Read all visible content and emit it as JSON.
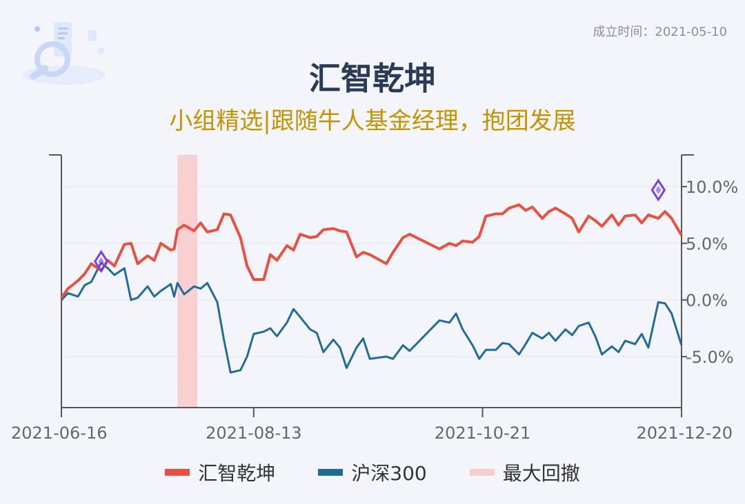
{
  "header": {
    "established": "成立时间：2021-05-10",
    "title": "汇智乾坤",
    "subtitle": "小组精选|跟随牛人基金经理，抱团发展"
  },
  "legend": [
    {
      "label": "汇智乾坤",
      "color": "#e8503f"
    },
    {
      "label": "沪深300",
      "color": "#1f6c99"
    },
    {
      "label": "最大回撤",
      "color": "#f9cccc"
    }
  ],
  "chart_data": {
    "type": "line",
    "x_ticks": [
      "2021-06-16",
      "2021-08-13",
      "2021-10-21",
      "2021-12-20"
    ],
    "y_ticks": [
      "10.0%",
      "5.0%",
      "0.0%",
      "-5.0%"
    ],
    "y_tick_values": [
      10,
      5,
      0,
      -5
    ],
    "ylim": [
      -9.5,
      12.8
    ],
    "axis_position": "right",
    "grid": true,
    "drawdown_range": [
      "2021-07-21",
      "2021-07-27"
    ],
    "series": [
      {
        "name": "汇智乾坤",
        "color": "#e8503f",
        "points": [
          [
            "2021-06-16",
            0.2
          ],
          [
            "2021-06-18",
            1.0
          ],
          [
            "2021-06-21",
            1.7
          ],
          [
            "2021-06-23",
            2.3
          ],
          [
            "2021-06-25",
            3.2
          ],
          [
            "2021-06-28",
            2.6
          ],
          [
            "2021-06-30",
            3.5
          ],
          [
            "2021-07-02",
            3.0
          ],
          [
            "2021-07-05",
            4.9
          ],
          [
            "2021-07-07",
            5.0
          ],
          [
            "2021-07-09",
            3.2
          ],
          [
            "2021-07-12",
            3.9
          ],
          [
            "2021-07-14",
            3.5
          ],
          [
            "2021-07-16",
            5.0
          ],
          [
            "2021-07-19",
            4.4
          ],
          [
            "2021-07-20",
            4.5
          ],
          [
            "2021-07-21",
            6.2
          ],
          [
            "2021-07-23",
            6.6
          ],
          [
            "2021-07-26",
            6.1
          ],
          [
            "2021-07-28",
            6.8
          ],
          [
            "2021-07-30",
            6.0
          ],
          [
            "2021-08-02",
            6.2
          ],
          [
            "2021-08-04",
            7.6
          ],
          [
            "2021-08-06",
            7.5
          ],
          [
            "2021-08-09",
            5.5
          ],
          [
            "2021-08-11",
            3.0
          ],
          [
            "2021-08-13",
            1.8
          ],
          [
            "2021-08-16",
            1.8
          ],
          [
            "2021-08-18",
            4.0
          ],
          [
            "2021-08-20",
            3.5
          ],
          [
            "2021-08-23",
            4.8
          ],
          [
            "2021-08-25",
            4.4
          ],
          [
            "2021-08-27",
            5.8
          ],
          [
            "2021-08-30",
            5.5
          ],
          [
            "2021-09-01",
            5.6
          ],
          [
            "2021-09-03",
            6.2
          ],
          [
            "2021-09-06",
            6.3
          ],
          [
            "2021-09-08",
            6.1
          ],
          [
            "2021-09-10",
            6.0
          ],
          [
            "2021-09-13",
            3.8
          ],
          [
            "2021-09-15",
            4.2
          ],
          [
            "2021-09-17",
            4.0
          ],
          [
            "2021-09-22",
            3.2
          ],
          [
            "2021-09-24",
            4.2
          ],
          [
            "2021-09-27",
            5.5
          ],
          [
            "2021-09-29",
            5.8
          ],
          [
            "2021-10-08",
            4.5
          ],
          [
            "2021-10-11",
            5.0
          ],
          [
            "2021-10-13",
            4.8
          ],
          [
            "2021-10-15",
            5.2
          ],
          [
            "2021-10-18",
            5.1
          ],
          [
            "2021-10-20",
            5.6
          ],
          [
            "2021-10-22",
            7.4
          ],
          [
            "2021-10-25",
            7.6
          ],
          [
            "2021-10-27",
            7.6
          ],
          [
            "2021-10-29",
            8.1
          ],
          [
            "2021-11-01",
            8.4
          ],
          [
            "2021-11-03",
            7.9
          ],
          [
            "2021-11-05",
            8.2
          ],
          [
            "2021-11-08",
            7.2
          ],
          [
            "2021-11-10",
            7.8
          ],
          [
            "2021-11-12",
            8.1
          ],
          [
            "2021-11-15",
            7.6
          ],
          [
            "2021-11-17",
            7.2
          ],
          [
            "2021-11-19",
            6.0
          ],
          [
            "2021-11-22",
            7.4
          ],
          [
            "2021-11-24",
            7.0
          ],
          [
            "2021-11-26",
            6.5
          ],
          [
            "2021-11-29",
            7.5
          ],
          [
            "2021-12-01",
            6.6
          ],
          [
            "2021-12-03",
            7.4
          ],
          [
            "2021-12-06",
            7.5
          ],
          [
            "2021-12-08",
            6.8
          ],
          [
            "2021-12-10",
            7.5
          ],
          [
            "2021-12-13",
            7.2
          ],
          [
            "2021-12-15",
            7.8
          ],
          [
            "2021-12-17",
            7.2
          ],
          [
            "2021-12-20",
            5.7
          ]
        ]
      },
      {
        "name": "沪深300",
        "color": "#1f6c99",
        "points": [
          [
            "2021-06-16",
            0.0
          ],
          [
            "2021-06-18",
            0.6
          ],
          [
            "2021-06-21",
            0.3
          ],
          [
            "2021-06-23",
            1.3
          ],
          [
            "2021-06-25",
            1.6
          ],
          [
            "2021-06-28",
            3.3
          ],
          [
            "2021-06-30",
            2.8
          ],
          [
            "2021-07-02",
            2.2
          ],
          [
            "2021-07-05",
            2.8
          ],
          [
            "2021-07-07",
            0.0
          ],
          [
            "2021-07-09",
            0.2
          ],
          [
            "2021-07-12",
            1.2
          ],
          [
            "2021-07-14",
            0.3
          ],
          [
            "2021-07-16",
            0.8
          ],
          [
            "2021-07-19",
            1.4
          ],
          [
            "2021-07-20",
            0.3
          ],
          [
            "2021-07-21",
            1.5
          ],
          [
            "2021-07-23",
            0.5
          ],
          [
            "2021-07-26",
            1.2
          ],
          [
            "2021-07-28",
            1.0
          ],
          [
            "2021-07-30",
            1.5
          ],
          [
            "2021-08-02",
            -0.2
          ],
          [
            "2021-08-04",
            -3.5
          ],
          [
            "2021-08-06",
            -6.4
          ],
          [
            "2021-08-09",
            -6.2
          ],
          [
            "2021-08-11",
            -5.0
          ],
          [
            "2021-08-13",
            -3.0
          ],
          [
            "2021-08-16",
            -2.8
          ],
          [
            "2021-08-18",
            -2.5
          ],
          [
            "2021-08-20",
            -3.2
          ],
          [
            "2021-08-23",
            -2.0
          ],
          [
            "2021-08-25",
            -0.8
          ],
          [
            "2021-08-27",
            -1.5
          ],
          [
            "2021-08-30",
            -2.6
          ],
          [
            "2021-09-01",
            -2.9
          ],
          [
            "2021-09-03",
            -4.6
          ],
          [
            "2021-09-06",
            -3.5
          ],
          [
            "2021-09-08",
            -4.2
          ],
          [
            "2021-09-10",
            -6.0
          ],
          [
            "2021-09-13",
            -4.2
          ],
          [
            "2021-09-15",
            -3.4
          ],
          [
            "2021-09-17",
            -5.2
          ],
          [
            "2021-09-22",
            -5.0
          ],
          [
            "2021-09-24",
            -5.2
          ],
          [
            "2021-09-27",
            -4.0
          ],
          [
            "2021-09-29",
            -4.5
          ],
          [
            "2021-10-08",
            -1.8
          ],
          [
            "2021-10-11",
            -2.0
          ],
          [
            "2021-10-13",
            -1.2
          ],
          [
            "2021-10-15",
            -2.6
          ],
          [
            "2021-10-18",
            -4.0
          ],
          [
            "2021-10-20",
            -5.2
          ],
          [
            "2021-10-22",
            -4.4
          ],
          [
            "2021-10-25",
            -4.4
          ],
          [
            "2021-10-27",
            -3.8
          ],
          [
            "2021-10-29",
            -3.9
          ],
          [
            "2021-11-01",
            -4.8
          ],
          [
            "2021-11-03",
            -3.9
          ],
          [
            "2021-11-05",
            -2.9
          ],
          [
            "2021-11-08",
            -3.4
          ],
          [
            "2021-11-10",
            -2.9
          ],
          [
            "2021-11-12",
            -3.6
          ],
          [
            "2021-11-15",
            -2.6
          ],
          [
            "2021-11-17",
            -3.1
          ],
          [
            "2021-11-19",
            -2.3
          ],
          [
            "2021-11-22",
            -2.0
          ],
          [
            "2021-11-24",
            -3.2
          ],
          [
            "2021-11-26",
            -4.8
          ],
          [
            "2021-11-29",
            -4.1
          ],
          [
            "2021-12-01",
            -4.6
          ],
          [
            "2021-12-03",
            -3.6
          ],
          [
            "2021-12-06",
            -3.9
          ],
          [
            "2021-12-08",
            -3.0
          ],
          [
            "2021-12-10",
            -4.2
          ],
          [
            "2021-12-13",
            -0.2
          ],
          [
            "2021-12-15",
            -0.3
          ],
          [
            "2021-12-17",
            -1.2
          ],
          [
            "2021-12-20",
            -4.0
          ]
        ]
      }
    ],
    "markers": [
      {
        "date": "2021-06-28",
        "value": 3.4,
        "color": "#7b3fe4"
      },
      {
        "date": "2021-12-13",
        "value": 9.7,
        "color": "#7b3fe4"
      }
    ]
  }
}
